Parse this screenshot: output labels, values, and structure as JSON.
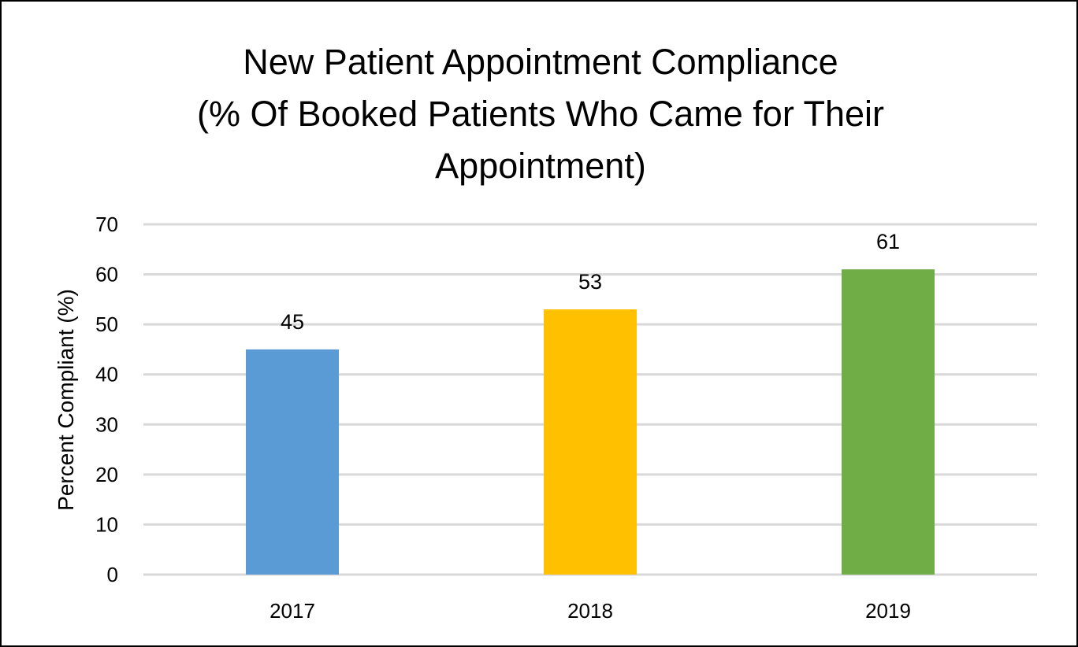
{
  "chart_data": {
    "type": "bar",
    "title_lines": [
      "New Patient Appointment Compliance",
      "(% Of Booked Patients Who Came for Their",
      "Appointment)"
    ],
    "xlabel": "",
    "ylabel": "Percent Compliant (%)",
    "categories": [
      "2017",
      "2018",
      "2019"
    ],
    "values": [
      45,
      53,
      61
    ],
    "data_labels": [
      "45",
      "53",
      "61"
    ],
    "bar_colors": [
      "#5B9BD5",
      "#FFC000",
      "#70AD47"
    ],
    "ylim": [
      0,
      70
    ],
    "yticks": [
      0,
      10,
      20,
      30,
      40,
      50,
      60,
      70
    ],
    "grid": true,
    "gridline_color": "#D9D9D9",
    "legend": "none"
  }
}
